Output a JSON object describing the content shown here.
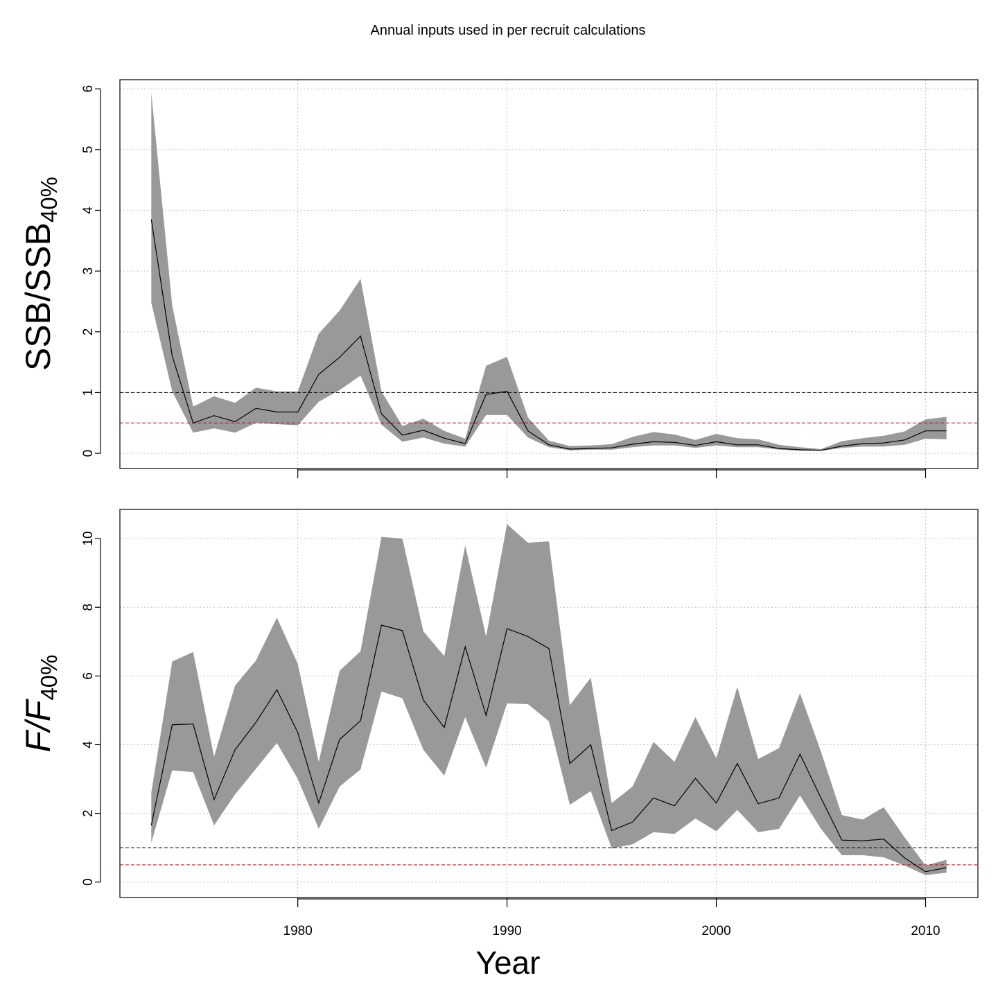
{
  "chart_data": {
    "title": "Annual inputs used in per recruit calculations",
    "xlabel": "Year",
    "x_ticks": [
      1980,
      1990,
      2000,
      2010
    ],
    "xlim": [
      1971.5,
      2012.5
    ],
    "colors": {
      "band": "#999999",
      "line": "#000000",
      "ref_black": "#000000",
      "ref_red": "#cc0000",
      "grid": "#c4c4c4"
    },
    "panels": [
      {
        "type": "area",
        "ylabel_main": "SSB/SSB",
        "ylabel_sub": "40%",
        "ylim": [
          -0.25,
          6.15
        ],
        "y_ticks": [
          0,
          1,
          2,
          3,
          4,
          5,
          6
        ],
        "ref_lines": [
          1,
          0.5
        ],
        "x": [
          1973,
          1974,
          1975,
          1976,
          1977,
          1978,
          1979,
          1980,
          1981,
          1982,
          1983,
          1984,
          1985,
          1986,
          1987,
          1988,
          1989,
          1990,
          1991,
          1992,
          1993,
          1994,
          1995,
          1996,
          1997,
          1998,
          1999,
          2000,
          2001,
          2002,
          2003,
          2004,
          2005,
          2006,
          2007,
          2008,
          2009,
          2010,
          2011
        ],
        "median": [
          3.85,
          1.6,
          0.5,
          0.62,
          0.52,
          0.74,
          0.68,
          0.68,
          1.3,
          1.58,
          1.93,
          0.65,
          0.3,
          0.38,
          0.25,
          0.16,
          0.97,
          1.02,
          0.37,
          0.14,
          0.07,
          0.08,
          0.09,
          0.15,
          0.19,
          0.18,
          0.13,
          0.19,
          0.14,
          0.14,
          0.08,
          0.06,
          0.05,
          0.12,
          0.16,
          0.17,
          0.22,
          0.37,
          0.37
        ],
        "lower": [
          2.48,
          1.02,
          0.34,
          0.41,
          0.34,
          0.5,
          0.48,
          0.46,
          0.85,
          1.04,
          1.28,
          0.47,
          0.19,
          0.26,
          0.16,
          0.11,
          0.63,
          0.63,
          0.26,
          0.1,
          0.05,
          0.06,
          0.06,
          0.1,
          0.13,
          0.13,
          0.09,
          0.13,
          0.1,
          0.1,
          0.06,
          0.04,
          0.04,
          0.09,
          0.11,
          0.11,
          0.14,
          0.24,
          0.23
        ],
        "upper": [
          5.93,
          2.43,
          0.77,
          0.94,
          0.83,
          1.08,
          1.02,
          1.02,
          1.97,
          2.35,
          2.87,
          1.02,
          0.45,
          0.57,
          0.37,
          0.24,
          1.44,
          1.59,
          0.59,
          0.21,
          0.12,
          0.13,
          0.15,
          0.27,
          0.35,
          0.31,
          0.22,
          0.32,
          0.25,
          0.23,
          0.14,
          0.1,
          0.07,
          0.2,
          0.25,
          0.29,
          0.36,
          0.56,
          0.6
        ]
      },
      {
        "type": "area",
        "ylabel_main": "F/F",
        "ylabel_sub": "40%",
        "ylim": [
          -0.45,
          10.85
        ],
        "y_ticks": [
          0,
          2,
          4,
          6,
          8,
          10
        ],
        "ref_lines": [
          1,
          0.5
        ],
        "x": [
          1973,
          1974,
          1975,
          1976,
          1977,
          1978,
          1979,
          1980,
          1981,
          1982,
          1983,
          1984,
          1985,
          1986,
          1987,
          1988,
          1989,
          1990,
          1991,
          1992,
          1993,
          1994,
          1995,
          1996,
          1997,
          1998,
          1999,
          2000,
          2001,
          2002,
          2003,
          2004,
          2005,
          2006,
          2007,
          2008,
          2009,
          2010,
          2011
        ],
        "median": [
          1.65,
          4.58,
          4.6,
          2.4,
          3.85,
          4.65,
          5.6,
          4.35,
          2.3,
          4.15,
          4.7,
          7.48,
          7.32,
          5.3,
          4.5,
          6.85,
          4.85,
          7.38,
          7.15,
          6.8,
          3.45,
          4.0,
          1.5,
          1.75,
          2.45,
          2.22,
          3.02,
          2.3,
          3.45,
          2.28,
          2.45,
          3.72,
          2.45,
          1.22,
          1.2,
          1.25,
          0.7,
          0.3,
          0.42
        ],
        "lower": [
          1.15,
          3.25,
          3.2,
          1.65,
          2.55,
          3.3,
          4.05,
          3.0,
          1.55,
          2.78,
          3.28,
          5.55,
          5.35,
          3.85,
          3.1,
          4.8,
          3.33,
          5.2,
          5.18,
          4.68,
          2.25,
          2.65,
          0.98,
          1.1,
          1.45,
          1.4,
          1.85,
          1.48,
          2.1,
          1.45,
          1.55,
          2.52,
          1.55,
          0.78,
          0.78,
          0.72,
          0.48,
          0.2,
          0.27
        ],
        "upper": [
          2.6,
          6.42,
          6.7,
          3.65,
          5.72,
          6.45,
          7.7,
          6.35,
          3.5,
          6.15,
          6.72,
          10.05,
          10.0,
          7.3,
          6.58,
          9.8,
          7.15,
          10.42,
          9.88,
          9.92,
          5.15,
          5.95,
          2.3,
          2.78,
          4.08,
          3.5,
          4.8,
          3.6,
          5.68,
          3.58,
          3.9,
          5.5,
          3.8,
          1.95,
          1.82,
          2.18,
          1.3,
          0.48,
          0.65
        ]
      }
    ]
  }
}
